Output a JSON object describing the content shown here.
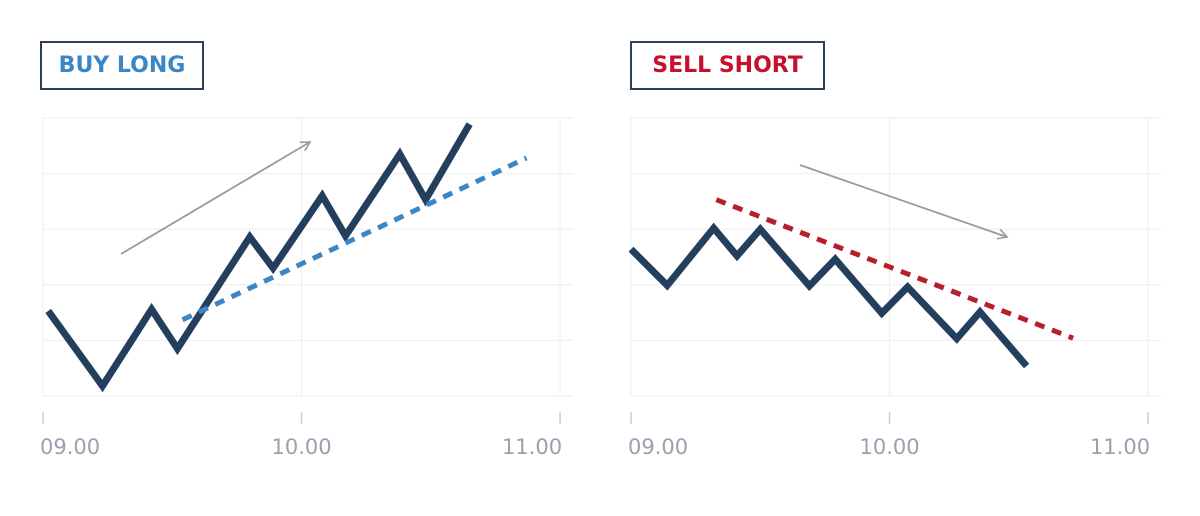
{
  "chart_data": [
    {
      "type": "line",
      "title": "BUY LONG",
      "title_color": "#3a87c8",
      "xlim": [
        9,
        11.05
      ],
      "ylim": [
        0,
        5
      ],
      "xticks": [
        {
          "value": 9,
          "label": "09.00"
        },
        {
          "value": 10,
          "label": "10.00"
        },
        {
          "value": 11,
          "label": "11.00"
        }
      ],
      "yticks": [
        0,
        1,
        2,
        3,
        4,
        5
      ],
      "grid": true,
      "series": [
        {
          "color": "#243f5e",
          "style": "solid",
          "x": [
            9.02,
            9.23,
            9.42,
            9.52,
            9.8,
            9.89,
            10.08,
            10.17,
            10.38,
            10.48,
            10.65
          ],
          "values": [
            1.53,
            0.18,
            1.56,
            0.85,
            2.86,
            2.3,
            3.6,
            2.88,
            4.35,
            3.53,
            4.89
          ]
        },
        {
          "color": "#3a87c8",
          "style": "dashed",
          "x": [
            9.54,
            10.87
          ],
          "values": [
            1.37,
            4.28
          ]
        }
      ]
    },
    {
      "type": "line",
      "title": "SELL SHORT",
      "title_color": "#c8102e",
      "xlim": [
        9,
        11.05
      ],
      "ylim": [
        0,
        5
      ],
      "xticks": [
        {
          "value": 9,
          "label": "09.00"
        },
        {
          "value": 10,
          "label": "10.00"
        },
        {
          "value": 11,
          "label": "11.00"
        }
      ],
      "yticks": [
        0,
        1,
        2,
        3,
        4,
        5
      ],
      "grid": true,
      "series": [
        {
          "color": "#243f5e",
          "style": "solid",
          "x": [
            9.0,
            9.14,
            9.32,
            9.41,
            9.5,
            9.69,
            9.79,
            9.97,
            10.07,
            10.26,
            10.35,
            10.53
          ],
          "values": [
            2.64,
            1.99,
            3.02,
            2.52,
            3.0,
            1.98,
            2.46,
            1.49,
            1.96,
            1.03,
            1.51,
            0.54
          ]
        },
        {
          "color": "#b5202a",
          "style": "dashed",
          "x": [
            9.33,
            10.71
          ],
          "values": [
            3.53,
            1.04
          ]
        }
      ]
    }
  ]
}
